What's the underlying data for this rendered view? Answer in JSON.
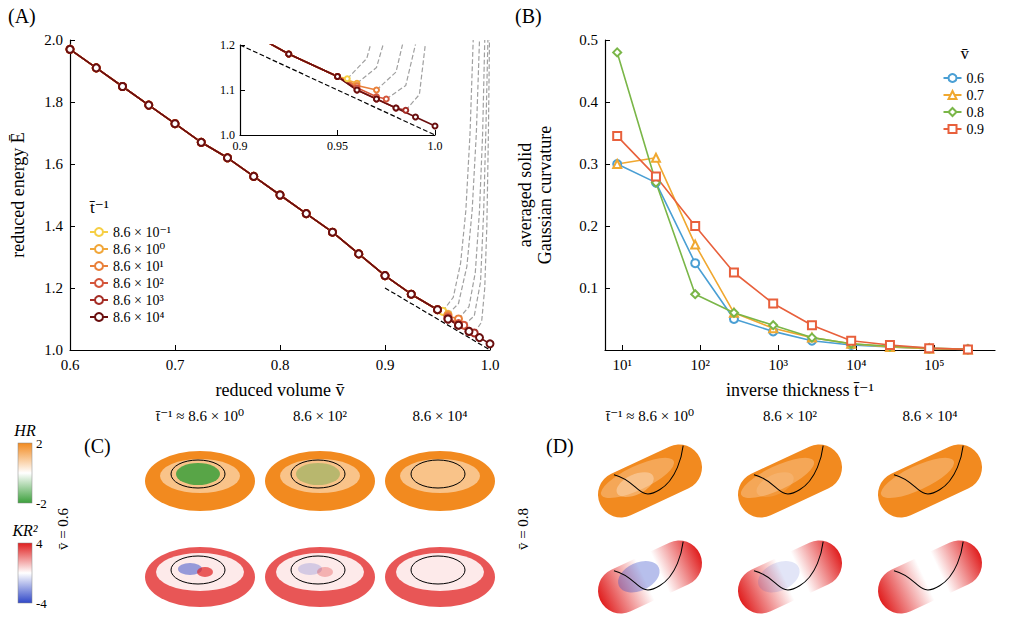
{
  "chart_data": [
    {
      "type": "line",
      "panel_label": "(A)",
      "x_label": "reduced volume v̄",
      "y_label": "reduced energy Ē",
      "xlim": [
        0.6,
        1.0
      ],
      "xticks": [
        0.6,
        0.7,
        0.8,
        0.9,
        {
          "value": 1,
          "label": "1.0"
        }
      ],
      "ylim": [
        1.0,
        2.0
      ],
      "yticks": [
        {
          "value": 1,
          "label": "1.0"
        },
        1.2,
        1.4,
        1.6,
        1.8,
        {
          "value": 2,
          "label": "2.0"
        }
      ],
      "legend": "lower left",
      "legend_title": "t̄⁻¹",
      "inset": {
        "xlim": [
          0.9,
          1.0
        ],
        "xticks": [
          0.9,
          0.95,
          {
            "value": 1,
            "label": "1.0"
          }
        ],
        "ylim": [
          1.0,
          1.2
        ],
        "yticks": [
          {
            "value": 1,
            "label": "1.0"
          },
          1.1,
          1.2
        ]
      },
      "series": [
        {
          "name": "8.6 × 10⁻¹",
          "color": "#f6cf45",
          "marker": "circle",
          "x": [
            0.6,
            0.625,
            0.65,
            0.675,
            0.7,
            0.725,
            0.75,
            0.775,
            0.8,
            0.825,
            0.85,
            0.875,
            0.9,
            0.925,
            0.95,
            0.955
          ],
          "values": [
            1.97,
            1.91,
            1.85,
            1.79,
            1.73,
            1.67,
            1.62,
            1.56,
            1.5,
            1.44,
            1.38,
            1.31,
            1.24,
            1.18,
            1.13,
            1.125
          ]
        },
        {
          "name": "8.6 × 10⁰",
          "color": "#f1a73a",
          "marker": "circle",
          "x": [
            0.6,
            0.625,
            0.65,
            0.675,
            0.7,
            0.725,
            0.75,
            0.775,
            0.8,
            0.825,
            0.85,
            0.875,
            0.9,
            0.925,
            0.95,
            0.96
          ],
          "values": [
            1.97,
            1.91,
            1.85,
            1.79,
            1.73,
            1.67,
            1.62,
            1.56,
            1.5,
            1.44,
            1.38,
            1.31,
            1.24,
            1.18,
            1.13,
            1.115
          ]
        },
        {
          "name": "8.6 × 10¹",
          "color": "#e9803a",
          "marker": "circle",
          "x": [
            0.6,
            0.625,
            0.65,
            0.675,
            0.7,
            0.725,
            0.75,
            0.775,
            0.8,
            0.825,
            0.85,
            0.875,
            0.9,
            0.925,
            0.95,
            0.96,
            0.97
          ],
          "values": [
            1.97,
            1.91,
            1.85,
            1.79,
            1.73,
            1.67,
            1.62,
            1.56,
            1.5,
            1.44,
            1.38,
            1.31,
            1.24,
            1.18,
            1.13,
            1.11,
            1.1
          ]
        },
        {
          "name": "8.6 × 10²",
          "color": "#d4553a",
          "marker": "circle",
          "x": [
            0.6,
            0.625,
            0.65,
            0.675,
            0.7,
            0.725,
            0.75,
            0.775,
            0.8,
            0.825,
            0.85,
            0.875,
            0.9,
            0.925,
            0.95,
            0.96,
            0.97,
            0.975
          ],
          "values": [
            1.97,
            1.91,
            1.85,
            1.79,
            1.73,
            1.67,
            1.62,
            1.56,
            1.5,
            1.44,
            1.38,
            1.31,
            1.24,
            1.18,
            1.13,
            1.105,
            1.085,
            1.08
          ]
        },
        {
          "name": "8.6 × 10³",
          "color": "#a52d25",
          "marker": "circle",
          "x": [
            0.6,
            0.625,
            0.65,
            0.675,
            0.7,
            0.725,
            0.75,
            0.775,
            0.8,
            0.825,
            0.85,
            0.875,
            0.9,
            0.925,
            0.95,
            0.96,
            0.97,
            0.98,
            0.985
          ],
          "values": [
            1.97,
            1.91,
            1.85,
            1.79,
            1.73,
            1.67,
            1.62,
            1.56,
            1.5,
            1.44,
            1.38,
            1.31,
            1.24,
            1.18,
            1.13,
            1.1,
            1.08,
            1.06,
            1.055
          ]
        },
        {
          "name": "8.6 × 10⁴",
          "color": "#6a0f0f",
          "marker": "circle",
          "x": [
            0.6,
            0.625,
            0.65,
            0.675,
            0.7,
            0.725,
            0.75,
            0.775,
            0.8,
            0.825,
            0.85,
            0.875,
            0.9,
            0.925,
            0.95,
            0.96,
            0.97,
            0.98,
            0.99,
            1.0
          ],
          "values": [
            1.97,
            1.91,
            1.85,
            1.79,
            1.73,
            1.67,
            1.62,
            1.56,
            1.5,
            1.44,
            1.38,
            1.31,
            1.24,
            1.18,
            1.13,
            1.1,
            1.08,
            1.06,
            1.04,
            1.02
          ]
        },
        {
          "color": "#a0a0a0",
          "line_style": "dashed",
          "x": [
            0.955,
            0.965,
            0.972,
            0.977,
            0.981,
            0.984
          ],
          "values": [
            1.125,
            1.17,
            1.28,
            1.45,
            1.7,
            2.0
          ]
        },
        {
          "color": "#a0a0a0",
          "line_style": "dashed",
          "x": [
            0.96,
            0.97,
            0.978,
            0.983,
            0.987,
            0.99
          ],
          "values": [
            1.115,
            1.15,
            1.27,
            1.45,
            1.7,
            2.0
          ]
        },
        {
          "color": "#a0a0a0",
          "line_style": "dashed",
          "x": [
            0.97,
            0.98,
            0.986,
            0.99,
            0.993,
            0.995
          ],
          "values": [
            1.1,
            1.14,
            1.25,
            1.45,
            1.7,
            2.0
          ]
        },
        {
          "color": "#a0a0a0",
          "line_style": "dashed",
          "x": [
            0.975,
            0.985,
            0.991,
            0.994,
            0.996,
            0.998
          ],
          "values": [
            1.08,
            1.11,
            1.22,
            1.45,
            1.7,
            2.0
          ]
        },
        {
          "color": "#a0a0a0",
          "line_style": "dashed",
          "x": [
            0.985,
            0.992,
            0.995,
            0.997,
            0.9985,
            0.9995
          ],
          "values": [
            1.055,
            1.09,
            1.2,
            1.4,
            1.7,
            2.0
          ]
        },
        {
          "color": "#000000",
          "line_style": "dashed",
          "x": [
            0.9,
            1.0
          ],
          "values": [
            1.2,
            1.0
          ]
        }
      ]
    },
    {
      "type": "line",
      "panel_label": "(B)",
      "x_label": "inverse thickness t̄⁻¹",
      "y_label": "averaged solid Gaussian curvature",
      "log": "x",
      "xlim": [
        6,
        600000
      ],
      "xticks": [
        {
          "value": 10,
          "label": "10¹"
        },
        {
          "value": 100,
          "label": "10²"
        },
        {
          "value": 1000,
          "label": "10³"
        },
        {
          "value": 10000,
          "label": "10⁴"
        },
        {
          "value": 100000,
          "label": "10⁵"
        }
      ],
      "ylim": [
        0,
        0.5
      ],
      "yticks": [
        0.1,
        0.2,
        0.3,
        0.4,
        0.5
      ],
      "legend": "upper right",
      "legend_title": "v̄",
      "series": [
        {
          "name": "0.6",
          "color": "#4a9fd4",
          "marker": "circle",
          "x": [
            8.6,
            27,
            86,
            270,
            860,
            2700,
            8600,
            27000,
            86000,
            270000
          ],
          "values": [
            0.3,
            0.27,
            0.14,
            0.05,
            0.03,
            0.015,
            0.008,
            0.005,
            0.002,
            0.001
          ]
        },
        {
          "name": "0.7",
          "color": "#f0a830",
          "marker": "triangle",
          "x": [
            8.6,
            27,
            86,
            270,
            860,
            2700,
            8600,
            27000,
            86000,
            270000
          ],
          "values": [
            0.3,
            0.31,
            0.17,
            0.06,
            0.035,
            0.02,
            0.01,
            0.005,
            0.002,
            0.001
          ]
        },
        {
          "name": "0.8",
          "color": "#7ab648",
          "marker": "diamond",
          "x": [
            8.6,
            27,
            86,
            270,
            860,
            2700,
            8600,
            27000,
            86000,
            270000
          ],
          "values": [
            0.48,
            0.27,
            0.09,
            0.06,
            0.04,
            0.02,
            0.01,
            0.006,
            0.003,
            0.001
          ]
        },
        {
          "name": "0.9",
          "color": "#e8603c",
          "marker": "square",
          "x": [
            8.6,
            27,
            86,
            270,
            860,
            2700,
            8600,
            27000,
            86000,
            270000
          ],
          "values": [
            0.345,
            0.28,
            0.2,
            0.125,
            0.075,
            0.04,
            0.015,
            0.008,
            0.003,
            0.001
          ]
        }
      ]
    }
  ],
  "shape_panels": {
    "colorbars": [
      {
        "label": "HR",
        "lim": [
          -2,
          2
        ],
        "ticks": [
          2,
          -2
        ],
        "colors": [
          "#3ca03c",
          "#ffffff",
          "#f28a1f"
        ]
      },
      {
        "label": "KR²",
        "lim": [
          -4,
          4
        ],
        "ticks": [
          4,
          -4
        ],
        "colors": [
          "#3048c8",
          "#ffffff",
          "#e01e1e"
        ]
      }
    ],
    "panels": [
      {
        "label": "(C)",
        "row_label": "v̄ = 0.6",
        "shape": "discocyte",
        "columns": [
          "t̄⁻¹ ≈ 8.6 × 10⁰",
          "8.6 × 10²",
          "8.6 × 10⁴"
        ]
      },
      {
        "label": "(D)",
        "row_label": "v̄ = 0.8",
        "shape": "prolate",
        "columns": [
          "t̄⁻¹ ≈ 8.6 × 10⁰",
          "8.6 × 10²",
          "8.6 × 10⁴"
        ]
      }
    ]
  }
}
